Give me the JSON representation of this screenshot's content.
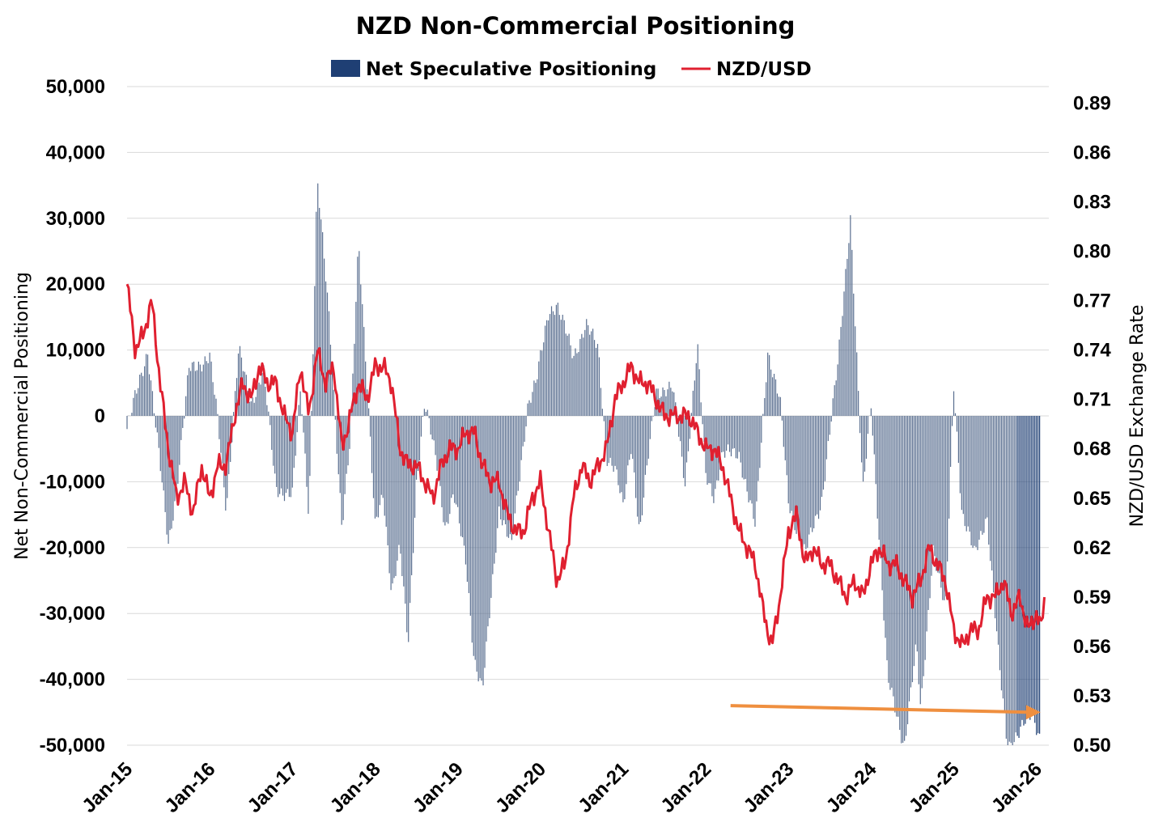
{
  "colors": {
    "bars_light": "#5a6f90",
    "bars_dark": "#1f3f74",
    "line": "#e02030",
    "arrow": "#ef8f3f",
    "grid": "#d9d9d9"
  },
  "chart_data": {
    "type": "bar",
    "title": "NZD Non-Commercial Positioning",
    "ylabel": "Net Non-Commercial Positioning",
    "y2label": "NZD/USD Exchange Rate",
    "ylim": [
      -50000,
      50000
    ],
    "y2lim": [
      0.5,
      0.9
    ],
    "yticks": [
      "50,000",
      "40,000",
      "30,000",
      "20,000",
      "10,000",
      "0",
      "-10,000",
      "-20,000",
      "-30,000",
      "-40,000",
      "-50,000"
    ],
    "y2ticks": [
      "0.89",
      "0.86",
      "0.83",
      "0.80",
      "0.77",
      "0.74",
      "0.71",
      "0.68",
      "0.65",
      "0.62",
      "0.59",
      "0.56",
      "0.53",
      "0.50"
    ],
    "xticks": [
      "Jan-15",
      "Jan-16",
      "Jan-17",
      "Jan-18",
      "Jan-19",
      "Jan-20",
      "Jan-21",
      "Jan-22",
      "Jan-23",
      "Jan-24",
      "Jan-25",
      "Jan-26"
    ],
    "legend_position": "top-center",
    "grid": true,
    "series": [
      {
        "name": "Net Speculative Positioning",
        "axis": "left",
        "kind": "bar",
        "x": [
          2015.0,
          2015.25,
          2015.5,
          2015.6,
          2015.75,
          2016.0,
          2016.1,
          2016.2,
          2016.35,
          2016.5,
          2016.65,
          2016.8,
          2017.0,
          2017.1,
          2017.2,
          2017.3,
          2017.45,
          2017.6,
          2017.7,
          2017.8,
          2017.9,
          2018.0,
          2018.1,
          2018.2,
          2018.3,
          2018.4,
          2018.5,
          2018.6,
          2018.75,
          2018.85,
          2018.95,
          2019.1,
          2019.2,
          2019.3,
          2019.5,
          2019.65,
          2019.85,
          2019.95,
          2020.1,
          2020.2,
          2020.3,
          2020.4,
          2020.55,
          2020.7,
          2020.8,
          2020.9,
          2021.0,
          2021.1,
          2021.2,
          2021.4,
          2021.6,
          2021.75,
          2021.9,
          2022.0,
          2022.1,
          2022.2,
          2022.4,
          2022.6,
          2022.75,
          2022.9,
          2023.0,
          2023.2,
          2023.4,
          2023.6,
          2023.75,
          2023.9,
          2024.0,
          2024.2,
          2024.4,
          2024.55,
          2024.6,
          2024.75,
          2024.9,
          2025.0,
          2025.1,
          2025.25,
          2025.4,
          2025.55,
          2025.65,
          2025.8,
          2025.95,
          2026.05
        ],
        "values": [
          -2000,
          10000,
          -19500,
          -11000,
          7000,
          9000,
          -1000,
          -14000,
          10000,
          2000,
          7000,
          -11000,
          -12000,
          4000,
          -15000,
          36000,
          14000,
          -17000,
          -4000,
          27000,
          6000,
          -17000,
          -12000,
          -26500,
          -20000,
          -35000,
          -10000,
          2000,
          -7500,
          -17000,
          -12000,
          -22000,
          -37000,
          -42000,
          -14000,
          -20000,
          2000,
          5000,
          16000,
          17000,
          13000,
          9000,
          14000,
          10000,
          -6000,
          -8000,
          -14000,
          -4000,
          -18000,
          4000,
          4000,
          -10000,
          10500,
          -9000,
          -12000,
          -6000,
          -5500,
          -17000,
          10000,
          2000,
          -13000,
          -21000,
          -13000,
          8000,
          30500,
          -12000,
          2000,
          -40000,
          -50000,
          -35000,
          -45000,
          -20000,
          -30000,
          5000,
          -15000,
          -21000,
          -15000,
          -38000,
          -50000,
          -48000,
          -45000,
          -49000
        ]
      },
      {
        "name": "NZD/USD",
        "axis": "right",
        "kind": "line",
        "x": [
          2015.0,
          2015.05,
          2015.1,
          2015.2,
          2015.3,
          2015.4,
          2015.5,
          2015.6,
          2015.7,
          2015.8,
          2015.9,
          2016.0,
          2016.1,
          2016.2,
          2016.3,
          2016.4,
          2016.5,
          2016.6,
          2016.7,
          2016.8,
          2016.9,
          2017.0,
          2017.1,
          2017.2,
          2017.3,
          2017.4,
          2017.5,
          2017.6,
          2017.7,
          2017.8,
          2017.9,
          2018.0,
          2018.1,
          2018.2,
          2018.3,
          2018.4,
          2018.5,
          2018.6,
          2018.7,
          2018.8,
          2018.9,
          2019.0,
          2019.1,
          2019.2,
          2019.3,
          2019.4,
          2019.5,
          2019.6,
          2019.7,
          2019.8,
          2019.9,
          2020.0,
          2020.1,
          2020.2,
          2020.3,
          2020.4,
          2020.5,
          2020.6,
          2020.7,
          2020.8,
          2020.9,
          2021.0,
          2021.1,
          2021.2,
          2021.3,
          2021.4,
          2021.5,
          2021.6,
          2021.7,
          2021.8,
          2021.9,
          2022.0,
          2022.1,
          2022.2,
          2022.3,
          2022.4,
          2022.5,
          2022.6,
          2022.7,
          2022.8,
          2022.9,
          2023.0,
          2023.1,
          2023.2,
          2023.3,
          2023.4,
          2023.5,
          2023.6,
          2023.7,
          2023.8,
          2023.9,
          2024.0,
          2024.1,
          2024.2,
          2024.3,
          2024.4,
          2024.5,
          2024.6,
          2024.7,
          2024.8,
          2024.9,
          2025.0,
          2025.1,
          2025.2,
          2025.3,
          2025.4,
          2025.5,
          2025.6,
          2025.7,
          2025.8,
          2025.9,
          2026.0,
          2026.05,
          2026.1
        ],
        "values": [
          0.78,
          0.76,
          0.74,
          0.75,
          0.77,
          0.72,
          0.68,
          0.65,
          0.66,
          0.64,
          0.67,
          0.65,
          0.67,
          0.67,
          0.7,
          0.72,
          0.71,
          0.73,
          0.72,
          0.72,
          0.7,
          0.69,
          0.73,
          0.7,
          0.74,
          0.72,
          0.73,
          0.68,
          0.7,
          0.72,
          0.71,
          0.73,
          0.73,
          0.72,
          0.68,
          0.67,
          0.67,
          0.66,
          0.65,
          0.67,
          0.68,
          0.68,
          0.69,
          0.69,
          0.67,
          0.66,
          0.66,
          0.64,
          0.63,
          0.63,
          0.65,
          0.66,
          0.63,
          0.6,
          0.61,
          0.65,
          0.67,
          0.66,
          0.67,
          0.68,
          0.71,
          0.72,
          0.73,
          0.72,
          0.72,
          0.71,
          0.7,
          0.7,
          0.7,
          0.7,
          0.69,
          0.68,
          0.68,
          0.67,
          0.65,
          0.63,
          0.62,
          0.61,
          0.58,
          0.56,
          0.59,
          0.63,
          0.64,
          0.61,
          0.62,
          0.61,
          0.61,
          0.6,
          0.59,
          0.6,
          0.59,
          0.61,
          0.62,
          0.61,
          0.61,
          0.6,
          0.59,
          0.6,
          0.62,
          0.61,
          0.6,
          0.57,
          0.56,
          0.57,
          0.57,
          0.59,
          0.59,
          0.6,
          0.58,
          0.59,
          0.57,
          0.58,
          0.57,
          0.59
        ]
      }
    ],
    "annotations": [
      {
        "type": "arrow",
        "from": [
          2022.3,
          -44000
        ],
        "to": [
          2026.05,
          -45000
        ]
      }
    ]
  }
}
